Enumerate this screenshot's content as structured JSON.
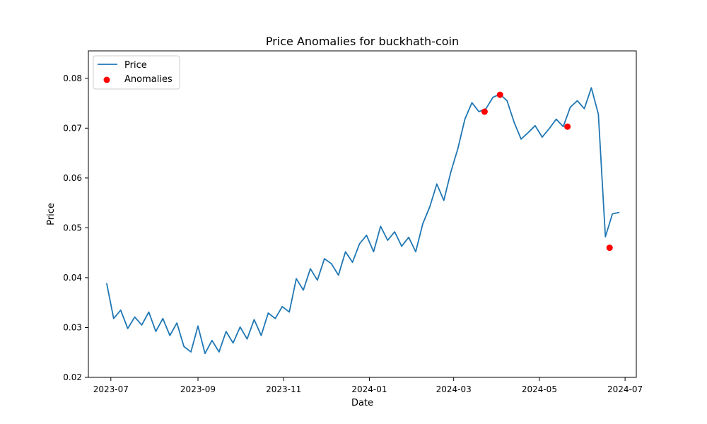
{
  "chart_data": {
    "type": "line",
    "title": "Price Anomalies for buckhath-coin",
    "xlabel": "Date",
    "ylabel": "Price",
    "xlim": [
      "2023-06-15",
      "2024-07-09"
    ],
    "ylim": [
      0.02,
      0.0855
    ],
    "x_ticks": [
      "2023-07-01",
      "2023-09-01",
      "2023-11-01",
      "2024-01-01",
      "2024-03-01",
      "2024-05-01",
      "2024-07-01"
    ],
    "x_tick_labels": [
      "2023-07",
      "2023-09",
      "2023-11",
      "2024-01",
      "2024-03",
      "2024-05",
      "2024-07"
    ],
    "y_ticks": [
      0.02,
      0.03,
      0.04,
      0.05,
      0.06,
      0.07,
      0.08
    ],
    "y_tick_labels": [
      "0.02",
      "0.03",
      "0.04",
      "0.05",
      "0.06",
      "0.07",
      "0.08"
    ],
    "grid": false,
    "legend": {
      "position": "top-left",
      "entries": [
        "Price",
        "Anomalies"
      ]
    },
    "series": [
      {
        "name": "Price",
        "kind": "line",
        "color": "#1f77b4",
        "x": [
          "2023-06-28",
          "2023-07-03",
          "2023-07-08",
          "2023-07-13",
          "2023-07-18",
          "2023-07-23",
          "2023-07-28",
          "2023-08-02",
          "2023-08-07",
          "2023-08-12",
          "2023-08-17",
          "2023-08-22",
          "2023-08-27",
          "2023-09-01",
          "2023-09-06",
          "2023-09-11",
          "2023-09-16",
          "2023-09-21",
          "2023-09-26",
          "2023-10-01",
          "2023-10-06",
          "2023-10-11",
          "2023-10-16",
          "2023-10-21",
          "2023-10-26",
          "2023-10-31",
          "2023-11-05",
          "2023-11-10",
          "2023-11-15",
          "2023-11-20",
          "2023-11-25",
          "2023-11-30",
          "2023-12-05",
          "2023-12-10",
          "2023-12-15",
          "2023-12-20",
          "2023-12-25",
          "2023-12-30",
          "2024-01-04",
          "2024-01-09",
          "2024-01-14",
          "2024-01-19",
          "2024-01-24",
          "2024-01-29",
          "2024-02-03",
          "2024-02-08",
          "2024-02-13",
          "2024-02-18",
          "2024-02-23",
          "2024-02-28",
          "2024-03-04",
          "2024-03-09",
          "2024-03-14",
          "2024-03-19",
          "2024-03-24",
          "2024-03-29",
          "2024-04-03",
          "2024-04-08",
          "2024-04-13",
          "2024-04-18",
          "2024-04-23",
          "2024-04-28",
          "2024-05-03",
          "2024-05-08",
          "2024-05-13",
          "2024-05-18",
          "2024-05-23",
          "2024-05-28",
          "2024-06-02",
          "2024-06-07",
          "2024-06-12",
          "2024-06-17",
          "2024-06-22",
          "2024-06-27"
        ],
        "y": [
          0.0389,
          0.0318,
          0.0335,
          0.0298,
          0.0321,
          0.0305,
          0.0331,
          0.0292,
          0.0318,
          0.0284,
          0.0309,
          0.0262,
          0.0251,
          0.0303,
          0.0248,
          0.0274,
          0.0251,
          0.0292,
          0.0269,
          0.0301,
          0.0277,
          0.0316,
          0.0284,
          0.0329,
          0.0318,
          0.0342,
          0.0331,
          0.0398,
          0.0375,
          0.0418,
          0.0395,
          0.0438,
          0.0428,
          0.0405,
          0.0452,
          0.0431,
          0.0468,
          0.0485,
          0.0452,
          0.0503,
          0.0475,
          0.0492,
          0.0463,
          0.0481,
          0.0452,
          0.0508,
          0.0542,
          0.0588,
          0.0555,
          0.0612,
          0.0659,
          0.0718,
          0.0751,
          0.0733,
          0.0739,
          0.0762,
          0.0768,
          0.0755,
          0.0712,
          0.0678,
          0.0691,
          0.0705,
          0.0682,
          0.0699,
          0.0718,
          0.0703,
          0.0742,
          0.0755,
          0.0739,
          0.0781,
          0.0728,
          0.0482,
          0.0528,
          0.0531
        ]
      },
      {
        "name": "Anomalies",
        "kind": "scatter",
        "color": "#ff0000",
        "x": [
          "2024-03-23",
          "2024-04-03",
          "2024-05-21",
          "2024-06-20"
        ],
        "y": [
          0.0733,
          0.0767,
          0.0703,
          0.046
        ]
      }
    ]
  }
}
